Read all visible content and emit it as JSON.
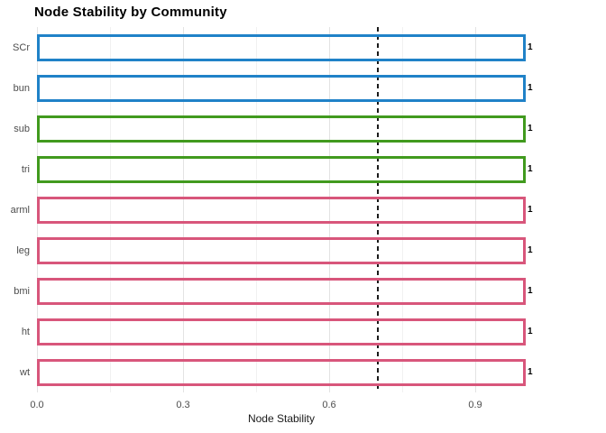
{
  "chart_data": {
    "type": "bar",
    "orientation": "horizontal",
    "title": "Node Stability by Community",
    "xlabel": "Node Stability",
    "ylabel": "",
    "categories": [
      "SCr",
      "bun",
      "sub",
      "tri",
      "arml",
      "leg",
      "bmi",
      "ht",
      "wt"
    ],
    "series": [
      {
        "name": "Node Stability",
        "values": [
          1,
          1,
          1,
          1,
          1,
          1,
          1,
          1,
          1
        ]
      }
    ],
    "bars": [
      {
        "label": "SCr",
        "value": 1,
        "value_label": "1",
        "community": "community-1",
        "color": "#2082C8"
      },
      {
        "label": "bun",
        "value": 1,
        "value_label": "1",
        "community": "community-1",
        "color": "#2082C8"
      },
      {
        "label": "sub",
        "value": 1,
        "value_label": "1",
        "community": "community-2",
        "color": "#419A1E"
      },
      {
        "label": "tri",
        "value": 1,
        "value_label": "1",
        "community": "community-2",
        "color": "#419A1E"
      },
      {
        "label": "arml",
        "value": 1,
        "value_label": "1",
        "community": "community-3",
        "color": "#D8567B"
      },
      {
        "label": "leg",
        "value": 1,
        "value_label": "1",
        "community": "community-3",
        "color": "#D8567B"
      },
      {
        "label": "bmi",
        "value": 1,
        "value_label": "1",
        "community": "community-3",
        "color": "#D8567B"
      },
      {
        "label": "ht",
        "value": 1,
        "value_label": "1",
        "community": "community-3",
        "color": "#D8567B"
      },
      {
        "label": "wt",
        "value": 1,
        "value_label": "1",
        "community": "community-3",
        "color": "#D8567B"
      }
    ],
    "xlim": [
      0,
      1.004
    ],
    "x_ticks": [
      0,
      0.3,
      0.6,
      0.9
    ],
    "x_tick_labels": [
      "0.0",
      "0.3",
      "0.6",
      "0.9"
    ],
    "x_minor_ticks": [
      0.15,
      0.45,
      0.75
    ],
    "reference_line": {
      "x": 0.7,
      "style": "dashed",
      "color": "#1a1a1a"
    },
    "bar_fill": "transparent",
    "grid": {
      "on": true,
      "major_color": "#e3e3e3",
      "minor_color": "#f1f1f1"
    },
    "legend": false
  },
  "colors": {
    "community_blue": "#2082C8",
    "community_green": "#419A1E",
    "community_pink": "#D8567B",
    "axis_text": "#4d4d4d",
    "title_text": "#000000",
    "reference_line": "#1a1a1a",
    "background": "#ffffff"
  }
}
